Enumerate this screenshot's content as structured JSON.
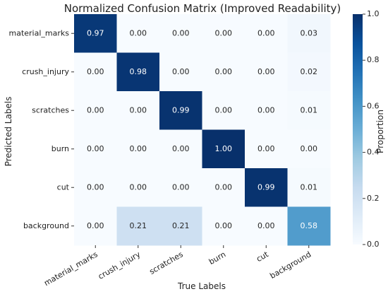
{
  "chart_data": {
    "type": "heatmap",
    "title": "Normalized Confusion Matrix (Improved Readability)",
    "xlabel": "True Labels",
    "ylabel": "Predicted Labels",
    "x_categories": [
      "material_marks",
      "crush_injury",
      "scratches",
      "burn",
      "cut",
      "background"
    ],
    "y_categories": [
      "material_marks",
      "crush_injury",
      "scratches",
      "burn",
      "cut",
      "background"
    ],
    "values": [
      [
        0.97,
        0.0,
        0.0,
        0.0,
        0.0,
        0.03
      ],
      [
        0.0,
        0.98,
        0.0,
        0.0,
        0.0,
        0.02
      ],
      [
        0.0,
        0.0,
        0.99,
        0.0,
        0.0,
        0.01
      ],
      [
        0.0,
        0.0,
        0.0,
        1.0,
        0.0,
        0.0
      ],
      [
        0.0,
        0.0,
        0.0,
        0.0,
        0.99,
        0.01
      ],
      [
        0.0,
        0.21,
        0.21,
        0.0,
        0.0,
        0.58
      ]
    ],
    "colorbar": {
      "label": "Proportion",
      "range": [
        0.0,
        1.0
      ],
      "ticks": [
        0.0,
        0.2,
        0.4,
        0.6,
        0.8,
        1.0
      ],
      "colormap": "Blues",
      "low_color": "#f7fbff",
      "high_color": "#08306b"
    },
    "xtick_rotation_deg": -30
  }
}
